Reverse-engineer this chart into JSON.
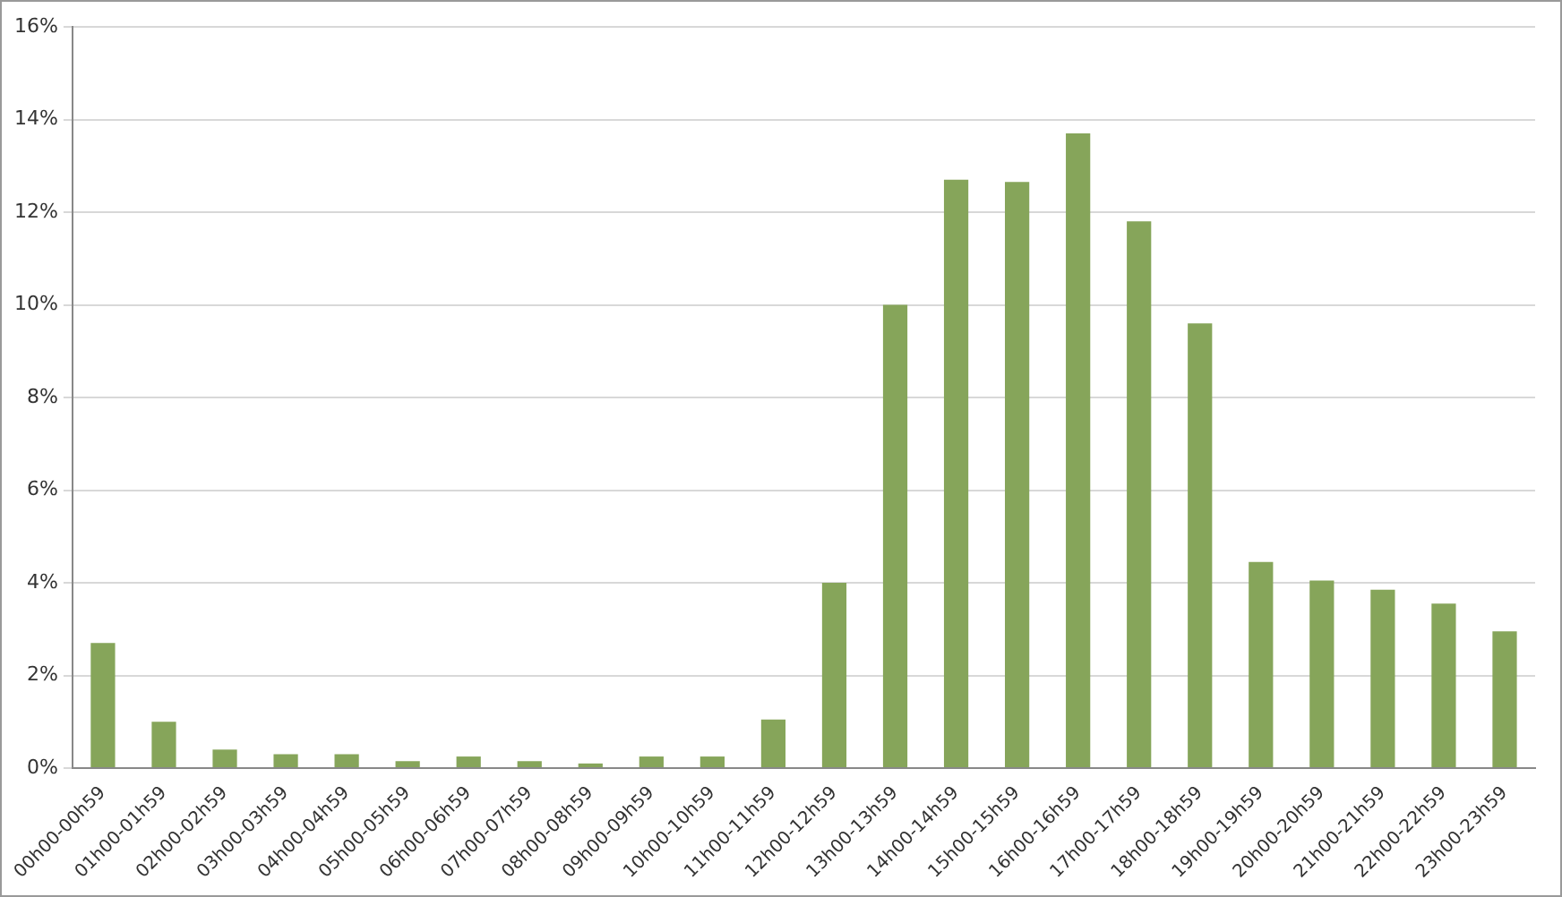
{
  "chart_data": {
    "type": "bar",
    "categories": [
      "00h00-00h59",
      "01h00-01h59",
      "02h00-02h59",
      "03h00-03h59",
      "04h00-04h59",
      "05h00-05h59",
      "06h00-06h59",
      "07h00-07h59",
      "08h00-08h59",
      "09h00-09h59",
      "10h00-10h59",
      "11h00-11h59",
      "12h00-12h59",
      "13h00-13h59",
      "14h00-14h59",
      "15h00-15h59",
      "16h00-16h59",
      "17h00-17h59",
      "18h00-18h59",
      "19h00-19h59",
      "20h00-20h59",
      "21h00-21h59",
      "22h00-22h59",
      "23h00-23h59"
    ],
    "values": [
      2.7,
      1.0,
      0.4,
      0.3,
      0.3,
      0.15,
      0.25,
      0.15,
      0.1,
      0.25,
      0.25,
      1.05,
      4.0,
      10.0,
      12.7,
      12.65,
      13.7,
      11.8,
      9.6,
      4.45,
      4.05,
      3.85,
      3.55,
      2.95
    ],
    "color": "#86a55a",
    "ylim": [
      0,
      16
    ],
    "yticks": [
      {
        "value": 0,
        "label": "0%"
      },
      {
        "value": 2,
        "label": "2%"
      },
      {
        "value": 4,
        "label": "4%"
      },
      {
        "value": 6,
        "label": "6%"
      },
      {
        "value": 8,
        "label": "8%"
      },
      {
        "value": 10,
        "label": "10%"
      },
      {
        "value": 12,
        "label": "12%"
      },
      {
        "value": 14,
        "label": "14%"
      },
      {
        "value": 16,
        "label": "16%"
      }
    ],
    "grid": "y",
    "legend": false
  }
}
